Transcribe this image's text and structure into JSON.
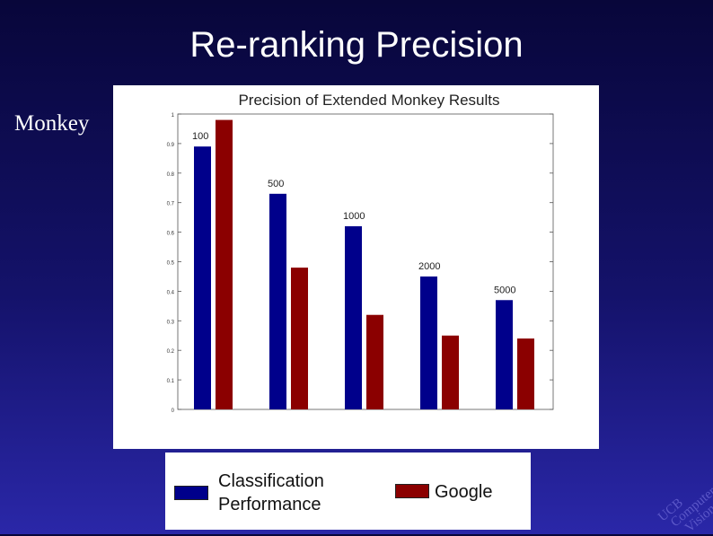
{
  "slide": {
    "title": "Re-ranking Precision",
    "side_label": "Monkey"
  },
  "legend": {
    "items": [
      {
        "label_line1": "Classification",
        "label_line2": "Performance",
        "color": "#00008b"
      },
      {
        "label_line1": "Google",
        "label_line2": "",
        "color": "#8b0000"
      }
    ]
  },
  "watermark": {
    "line1": "UCB",
    "line2": "Computer",
    "line3": "Vision"
  },
  "chart_data": {
    "type": "bar",
    "title": "Precision of Extended Monkey Results",
    "categories": [
      "100",
      "500",
      "1000",
      "2000",
      "5000"
    ],
    "series": [
      {
        "name": "Classification Performance",
        "color": "#00008b",
        "values": [
          0.89,
          0.73,
          0.62,
          0.45,
          0.37
        ]
      },
      {
        "name": "Google",
        "color": "#8b0000",
        "values": [
          0.98,
          0.48,
          0.32,
          0.25,
          0.24
        ]
      }
    ],
    "ylim": [
      0,
      1
    ],
    "yticks": [
      "0",
      "0.1",
      "0.2",
      "0.3",
      "0.4",
      "0.5",
      "0.6",
      "0.7",
      "0.8",
      "0.9",
      "1"
    ],
    "xlabel": "",
    "ylabel": "",
    "grid": false
  }
}
